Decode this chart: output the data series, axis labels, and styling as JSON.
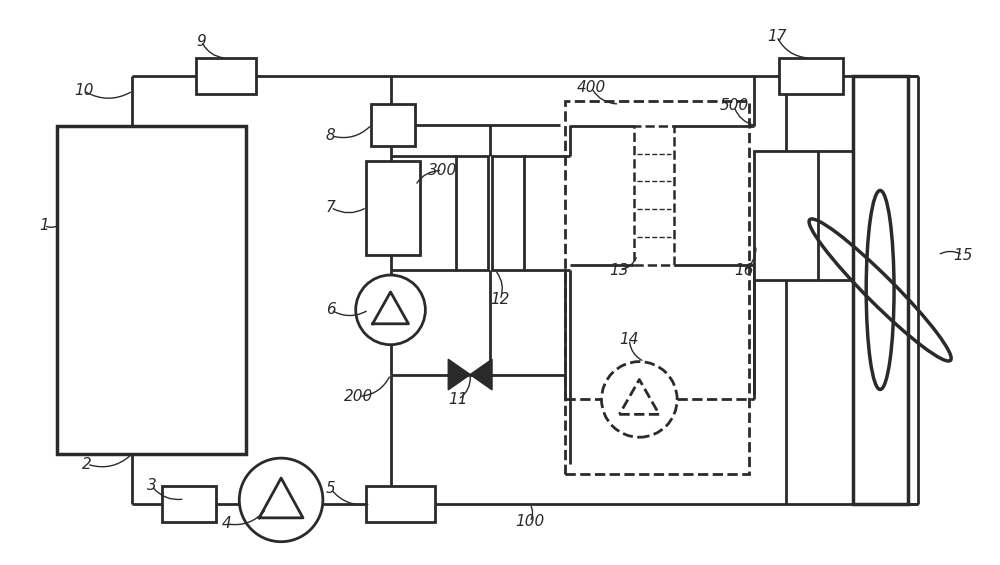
{
  "background_color": "#ffffff",
  "line_color": "#2a2a2a",
  "line_width": 2.0,
  "fig_width": 10.0,
  "fig_height": 5.65
}
